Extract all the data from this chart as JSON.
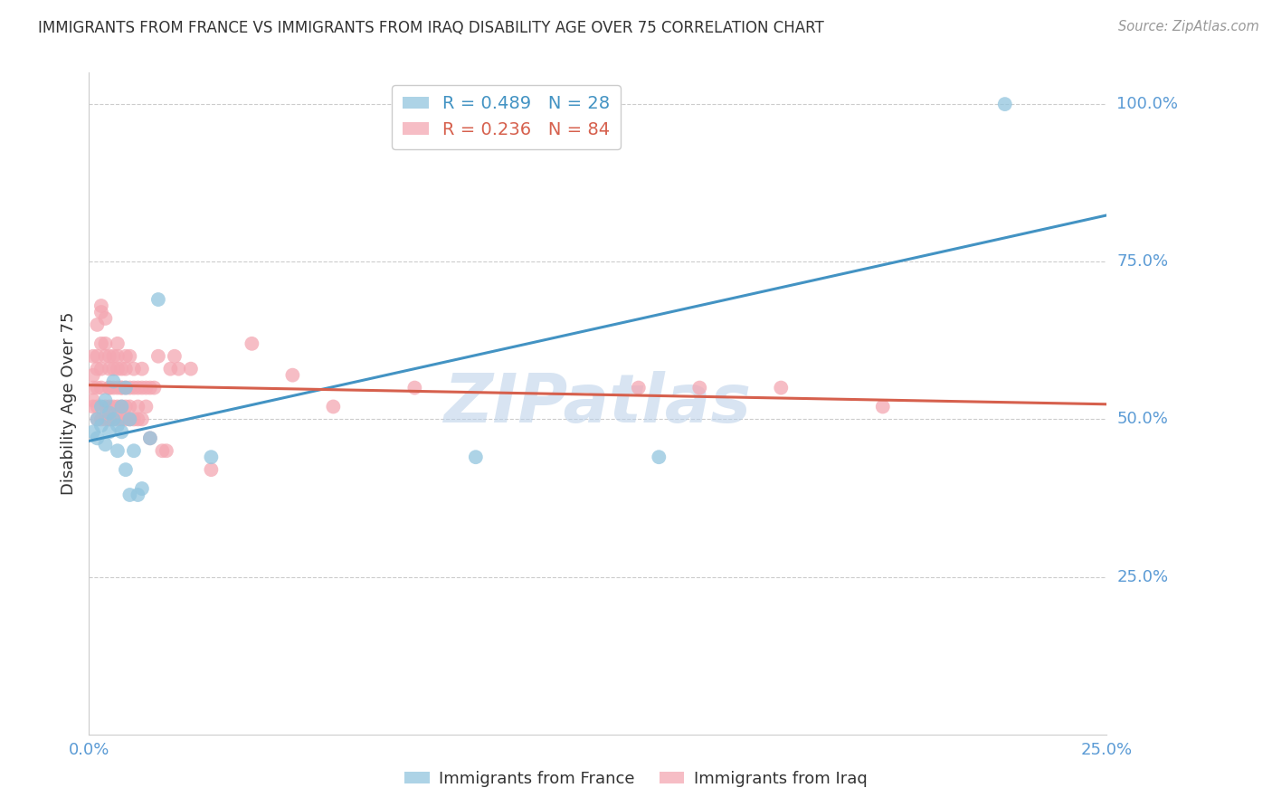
{
  "title": "IMMIGRANTS FROM FRANCE VS IMMIGRANTS FROM IRAQ DISABILITY AGE OVER 75 CORRELATION CHART",
  "source": "Source: ZipAtlas.com",
  "ylabel": "Disability Age Over 75",
  "legend_france_R": "0.489",
  "legend_france_N": "28",
  "legend_iraq_R": "0.236",
  "legend_iraq_N": "84",
  "france_color": "#92c5de",
  "iraq_color": "#f4a7b2",
  "france_line_color": "#4393c3",
  "iraq_line_color": "#d6604d",
  "watermark": "ZIPatlas",
  "france_x": [
    0.001,
    0.002,
    0.002,
    0.003,
    0.003,
    0.004,
    0.004,
    0.005,
    0.005,
    0.006,
    0.006,
    0.007,
    0.007,
    0.008,
    0.008,
    0.009,
    0.009,
    0.01,
    0.01,
    0.011,
    0.012,
    0.013,
    0.015,
    0.017,
    0.03,
    0.095,
    0.14,
    0.225
  ],
  "france_y": [
    48,
    50,
    47,
    52,
    49,
    46,
    53,
    51,
    48,
    56,
    50,
    49,
    45,
    52,
    48,
    42,
    55,
    38,
    50,
    45,
    38,
    39,
    47,
    69,
    44,
    44,
    44,
    100
  ],
  "iraq_x": [
    0.001,
    0.001,
    0.001,
    0.001,
    0.001,
    0.002,
    0.002,
    0.002,
    0.002,
    0.002,
    0.002,
    0.003,
    0.003,
    0.003,
    0.003,
    0.003,
    0.003,
    0.004,
    0.004,
    0.004,
    0.004,
    0.004,
    0.005,
    0.005,
    0.005,
    0.005,
    0.005,
    0.005,
    0.005,
    0.006,
    0.006,
    0.006,
    0.006,
    0.006,
    0.007,
    0.007,
    0.007,
    0.007,
    0.007,
    0.007,
    0.008,
    0.008,
    0.008,
    0.008,
    0.008,
    0.009,
    0.009,
    0.009,
    0.009,
    0.009,
    0.01,
    0.01,
    0.01,
    0.01,
    0.011,
    0.011,
    0.011,
    0.012,
    0.012,
    0.012,
    0.013,
    0.013,
    0.013,
    0.014,
    0.014,
    0.015,
    0.015,
    0.016,
    0.017,
    0.018,
    0.019,
    0.02,
    0.021,
    0.022,
    0.025,
    0.03,
    0.04,
    0.05,
    0.06,
    0.08,
    0.135,
    0.15,
    0.17,
    0.195
  ],
  "iraq_y": [
    52,
    55,
    60,
    57,
    53,
    52,
    55,
    60,
    65,
    58,
    50,
    50,
    55,
    62,
    67,
    68,
    58,
    50,
    62,
    66,
    60,
    52,
    50,
    55,
    60,
    58,
    55,
    52,
    50,
    52,
    55,
    60,
    58,
    50,
    55,
    60,
    62,
    58,
    52,
    50,
    55,
    52,
    58,
    55,
    50,
    55,
    52,
    60,
    58,
    50,
    55,
    60,
    52,
    50,
    55,
    58,
    50,
    55,
    52,
    50,
    55,
    58,
    50,
    55,
    52,
    55,
    47,
    55,
    60,
    45,
    45,
    58,
    60,
    58,
    58,
    42,
    62,
    57,
    52,
    55,
    55,
    55,
    55,
    52
  ],
  "xlim": [
    0.0,
    0.25
  ],
  "ylim": [
    0.0,
    105
  ],
  "xtick_positions": [
    0.0,
    0.05,
    0.1,
    0.15,
    0.2,
    0.25
  ],
  "ytick_positions": [
    25,
    50,
    75,
    100
  ],
  "ytick_labels": [
    "25.0%",
    "50.0%",
    "75.0%",
    "100.0%"
  ],
  "background_color": "#ffffff",
  "grid_color": "#cccccc",
  "axis_color": "#cccccc",
  "title_color": "#333333",
  "axis_label_color": "#5b9bd5",
  "source_color": "#999999"
}
